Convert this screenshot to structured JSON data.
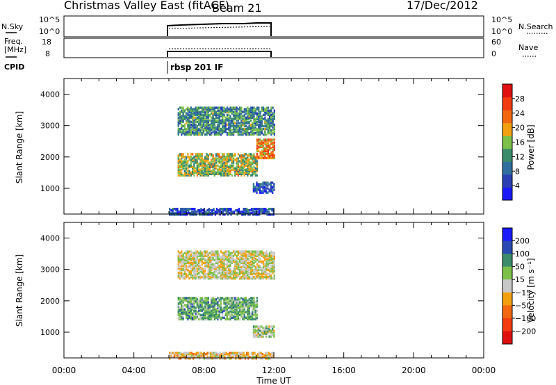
{
  "header": {
    "title": "Christmas Valley East (fitACF)",
    "beam": "Beam 21",
    "date": "17/Dec/2012"
  },
  "top_panels": {
    "nsky": {
      "left_label": "N.Sky",
      "ticks": [
        "10^5",
        "10^0"
      ],
      "right_ticks": [
        "10^5",
        "10^0"
      ],
      "right_label": "N.Search"
    },
    "freq": {
      "left_label_1": "Freq.",
      "left_label_2": "[MHz]",
      "ticks": [
        "18",
        "8"
      ],
      "right_ticks": [
        "60",
        "0"
      ],
      "right_label": "Nave"
    },
    "cpid": {
      "label": "CPID",
      "program": "rbsp 201 IF"
    }
  },
  "x_axis": {
    "label": "Time UT",
    "ticks": [
      "00:00",
      "04:00",
      "08:00",
      "12:00",
      "16:00",
      "20:00",
      "00:00"
    ]
  },
  "chart_data": [
    {
      "type": "heatmap",
      "title": "",
      "xlabel": "Time UT",
      "ylabel": "Slant Range [km]",
      "xlim": [
        0,
        24
      ],
      "ylim": [
        180,
        4500
      ],
      "yticks": [
        "1000",
        "2000",
        "3000",
        "4000"
      ],
      "colorbar": {
        "label": "Power [dB]",
        "ticks": [
          "4",
          "8",
          "12",
          "16",
          "20",
          "24",
          "28"
        ],
        "range": [
          0,
          32
        ],
        "colors": [
          "#1a1aff",
          "#2a3fb3",
          "#2f6e9e",
          "#3a8c6a",
          "#7cc04a",
          "#f2a010",
          "#f26810",
          "#f23c10",
          "#e01010"
        ]
      },
      "regions": [
        {
          "name": "near-range",
          "t_start": 6.0,
          "t_end": 12.0,
          "range_min": 200,
          "range_max": 400,
          "value": 6
        },
        {
          "name": "lower-band",
          "t_start": 6.5,
          "t_end": 11.0,
          "range_min": 1450,
          "range_max": 2150,
          "value": 16
        },
        {
          "name": "upper-band",
          "t_start": 6.5,
          "t_end": 12.0,
          "range_min": 2750,
          "range_max": 3650,
          "value": 12
        },
        {
          "name": "late-low",
          "t_start": 10.8,
          "t_end": 12.0,
          "range_min": 900,
          "range_max": 1250,
          "value": 6
        },
        {
          "name": "late-enhancement",
          "t_start": 11.0,
          "t_end": 12.0,
          "range_min": 2000,
          "range_max": 2600,
          "value": 22
        }
      ]
    },
    {
      "type": "heatmap",
      "title": "",
      "xlabel": "Time UT",
      "ylabel": "Slant Range [km]",
      "xlim": [
        0,
        24
      ],
      "ylim": [
        180,
        4500
      ],
      "yticks": [
        "1000",
        "2000",
        "3000",
        "4000"
      ],
      "colorbar": {
        "label": "Velocity [m s⁻¹]",
        "ticks": [
          "200",
          "100",
          "50",
          "15",
          "−15",
          "−50",
          "−100",
          "−200"
        ],
        "range": [
          -250,
          250
        ],
        "colors": [
          "#1a1aff",
          "#2a4ab3",
          "#3a8c6a",
          "#7cc04a",
          "#c8c8c8",
          "#f2a010",
          "#f26810",
          "#f23c10",
          "#e01010"
        ]
      },
      "regions": [
        {
          "name": "near-range",
          "t_start": 6.0,
          "t_end": 12.0,
          "range_min": 200,
          "range_max": 400,
          "value": -30
        },
        {
          "name": "lower-band",
          "t_start": 6.5,
          "t_end": 11.0,
          "range_min": 1450,
          "range_max": 2150,
          "value": 80
        },
        {
          "name": "upper-band",
          "t_start": 6.5,
          "t_end": 12.0,
          "range_min": 2750,
          "range_max": 3650,
          "value": 0
        },
        {
          "name": "late-low",
          "t_start": 10.8,
          "t_end": 12.0,
          "range_min": 900,
          "range_max": 1250,
          "value": 30
        }
      ]
    }
  ]
}
